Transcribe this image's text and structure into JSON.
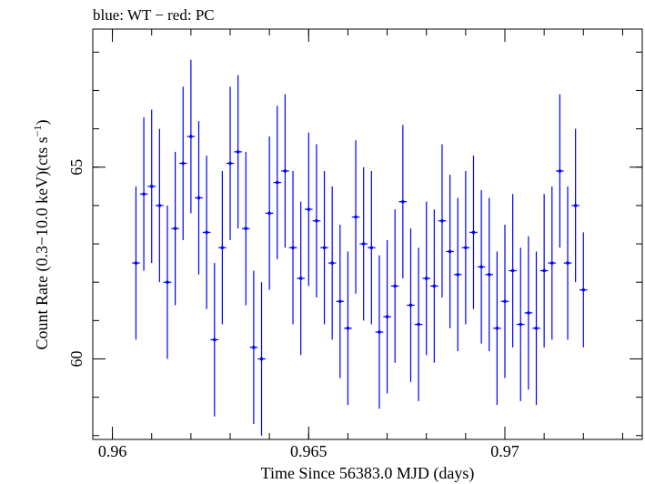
{
  "chart_data": {
    "type": "scatter",
    "title": "blue: WT − red: PC",
    "xlabel": "Time Since 56383.0 MJD (days)",
    "ylabel_main": "Count Rate (0.3−10.0 keV)(cts s",
    "ylabel_sup": "−1",
    "ylabel_end": ")",
    "xlim": [
      0.9595,
      0.9735
    ],
    "ylim": [
      57.9,
      68.6
    ],
    "xticks": [
      0.96,
      0.965,
      0.97
    ],
    "xtick_labels": [
      "0.96",
      "0.965",
      "0.97"
    ],
    "yticks": [
      60,
      65
    ],
    "ytick_labels": [
      "60",
      "65"
    ],
    "x_minor_step": 0.001,
    "y_minor_step": 1,
    "xerr": 0.0001,
    "grid": false,
    "series": [
      {
        "color": "#0000ff",
        "x": [
          0.9606,
          0.9608,
          0.961,
          0.9612,
          0.9614,
          0.9616,
          0.9618,
          0.962,
          0.9622,
          0.9624,
          0.9626,
          0.9628,
          0.963,
          0.9632,
          0.9634,
          0.9636,
          0.9638,
          0.964,
          0.9642,
          0.9644,
          0.9646,
          0.9648,
          0.965,
          0.9652,
          0.9654,
          0.9656,
          0.9658,
          0.966,
          0.9662,
          0.9664,
          0.9666,
          0.9668,
          0.967,
          0.9672,
          0.9674,
          0.9676,
          0.9678,
          0.968,
          0.9682,
          0.9684,
          0.9686,
          0.9688,
          0.969,
          0.9692,
          0.9694,
          0.9696,
          0.9698,
          0.97,
          0.9702,
          0.9704,
          0.9706,
          0.9708,
          0.971,
          0.9712,
          0.9714,
          0.9716,
          0.9718,
          0.972
        ],
        "y": [
          62.5,
          64.3,
          64.5,
          64.0,
          62.0,
          63.4,
          65.1,
          65.8,
          64.2,
          63.3,
          60.5,
          62.9,
          65.1,
          65.4,
          63.4,
          60.3,
          60.0,
          63.8,
          64.6,
          64.9,
          62.9,
          62.1,
          63.9,
          63.6,
          62.9,
          62.5,
          61.5,
          60.8,
          63.7,
          63.0,
          62.9,
          60.7,
          61.1,
          61.9,
          64.1,
          61.4,
          60.9,
          62.1,
          61.9,
          63.6,
          62.8,
          62.2,
          62.9,
          63.3,
          62.4,
          62.2,
          60.8,
          61.5,
          62.3,
          60.9,
          61.2,
          60.8,
          62.3,
          62.5,
          64.9,
          62.5,
          64.0,
          61.8
        ],
        "yerr": [
          2.0,
          2.0,
          2.0,
          2.0,
          2.0,
          2.0,
          2.0,
          2.0,
          2.0,
          2.0,
          2.0,
          2.0,
          2.0,
          2.0,
          2.0,
          2.0,
          2.0,
          2.0,
          2.0,
          2.0,
          2.0,
          2.0,
          2.0,
          2.0,
          2.0,
          2.0,
          2.0,
          2.0,
          2.0,
          2.0,
          2.0,
          2.0,
          2.0,
          2.0,
          2.0,
          2.0,
          2.0,
          2.0,
          2.0,
          2.0,
          2.0,
          2.0,
          2.0,
          2.0,
          2.0,
          2.0,
          2.0,
          2.0,
          2.0,
          2.0,
          2.0,
          2.0,
          2.0,
          2.0,
          2.0,
          2.0,
          2.0,
          1.5
        ]
      }
    ]
  }
}
